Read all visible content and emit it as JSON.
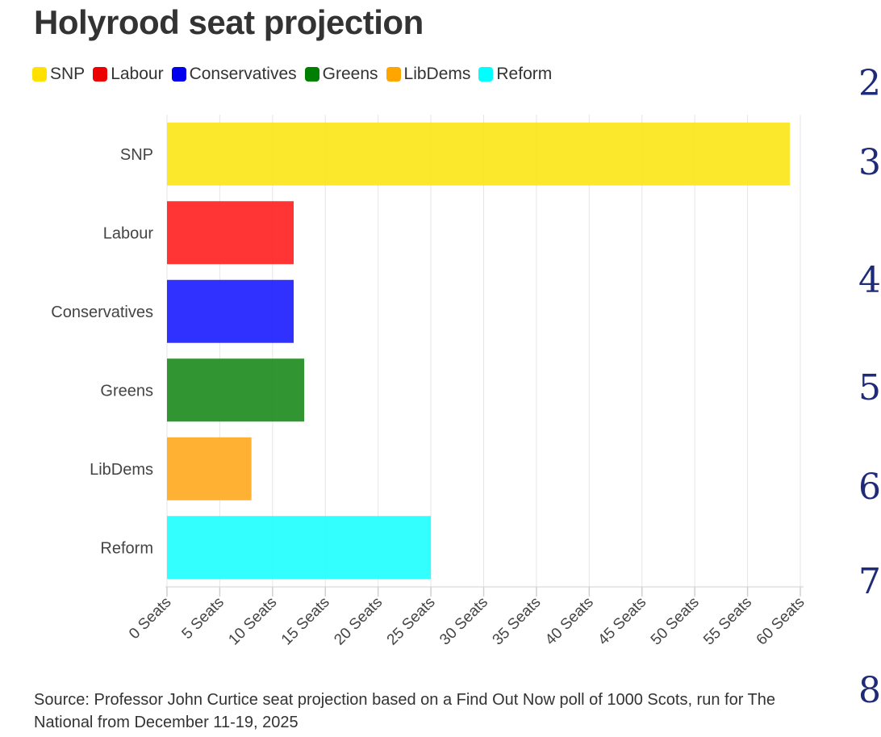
{
  "chart_data": {
    "type": "bar",
    "orientation": "horizontal",
    "title": "Holyrood seat projection",
    "categories": [
      "SNP",
      "Labour",
      "Conservatives",
      "Greens",
      "LibDems",
      "Reform"
    ],
    "values": [
      59,
      12,
      12,
      13,
      8,
      25
    ],
    "colors": [
      "#FBE51A",
      "#FF2424",
      "#2020FF",
      "#1F8C1F",
      "#FFAA22",
      "#22FFFF"
    ],
    "xlim": [
      0,
      60
    ],
    "x_ticks": [
      "0 Seats",
      "5 Seats",
      "10 Seats",
      "15 Seats",
      "20 Seats",
      "25 Seats",
      "30 Seats",
      "35 Seats",
      "40 Seats",
      "45 Seats",
      "50 Seats",
      "55 Seats",
      "60 Seats"
    ],
    "legend": {
      "position": "top-left",
      "items": [
        {
          "label": "SNP",
          "color": "#FFE100"
        },
        {
          "label": "Labour",
          "color": "#EE0000"
        },
        {
          "label": "Conservatives",
          "color": "#0000EE"
        },
        {
          "label": "Greens",
          "color": "#008000"
        },
        {
          "label": "LibDems",
          "color": "#FFA500"
        },
        {
          "label": "Reform",
          "color": "#00FFFF"
        }
      ]
    },
    "grid": true
  },
  "source_text": "Source: Professor John Curtice seat projection based on a Find Out Now poll of 1000 Scots, run for The National from December 11-19, 2025",
  "edge_glyphs": [
    "2",
    "3",
    "4",
    "5",
    "6",
    "7",
    "8"
  ]
}
